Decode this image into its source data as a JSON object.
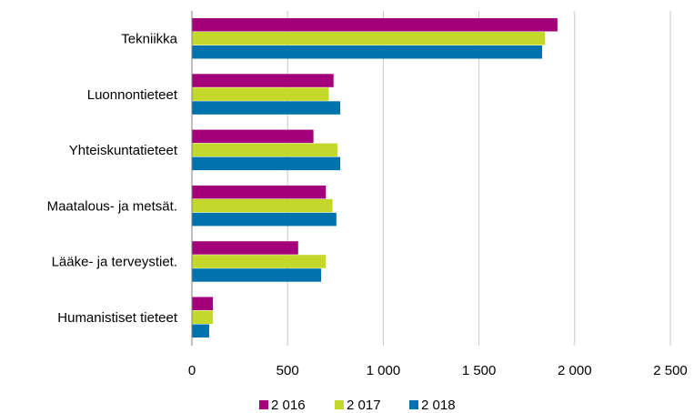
{
  "chart_data": {
    "type": "bar",
    "orientation": "horizontal",
    "categories": [
      "Tekniikka",
      "Luonnontieteet",
      "Yhteiskuntatieteet",
      "Maatalous- ja metsät.",
      "Lääke- ja terveystiet.",
      "Humanistiset tieteet"
    ],
    "series": [
      {
        "name": "2 016",
        "color": "#a3017a",
        "values": [
          1910,
          740,
          635,
          700,
          555,
          110
        ]
      },
      {
        "name": "2 017",
        "color": "#c3d82b",
        "values": [
          1845,
          715,
          760,
          735,
          700,
          110
        ]
      },
      {
        "name": "2 018",
        "color": "#0072ad",
        "values": [
          1830,
          775,
          775,
          755,
          675,
          90
        ]
      }
    ],
    "xlim": [
      0,
      2500
    ],
    "xticks": [
      0,
      500,
      1000,
      1500,
      2000,
      2500
    ],
    "xtick_labels": [
      "0",
      "500",
      "1 000",
      "1 500",
      "2 000",
      "2 500"
    ],
    "grid": "vertical",
    "legend": "bottom",
    "title": "",
    "xlabel": "",
    "ylabel": ""
  }
}
